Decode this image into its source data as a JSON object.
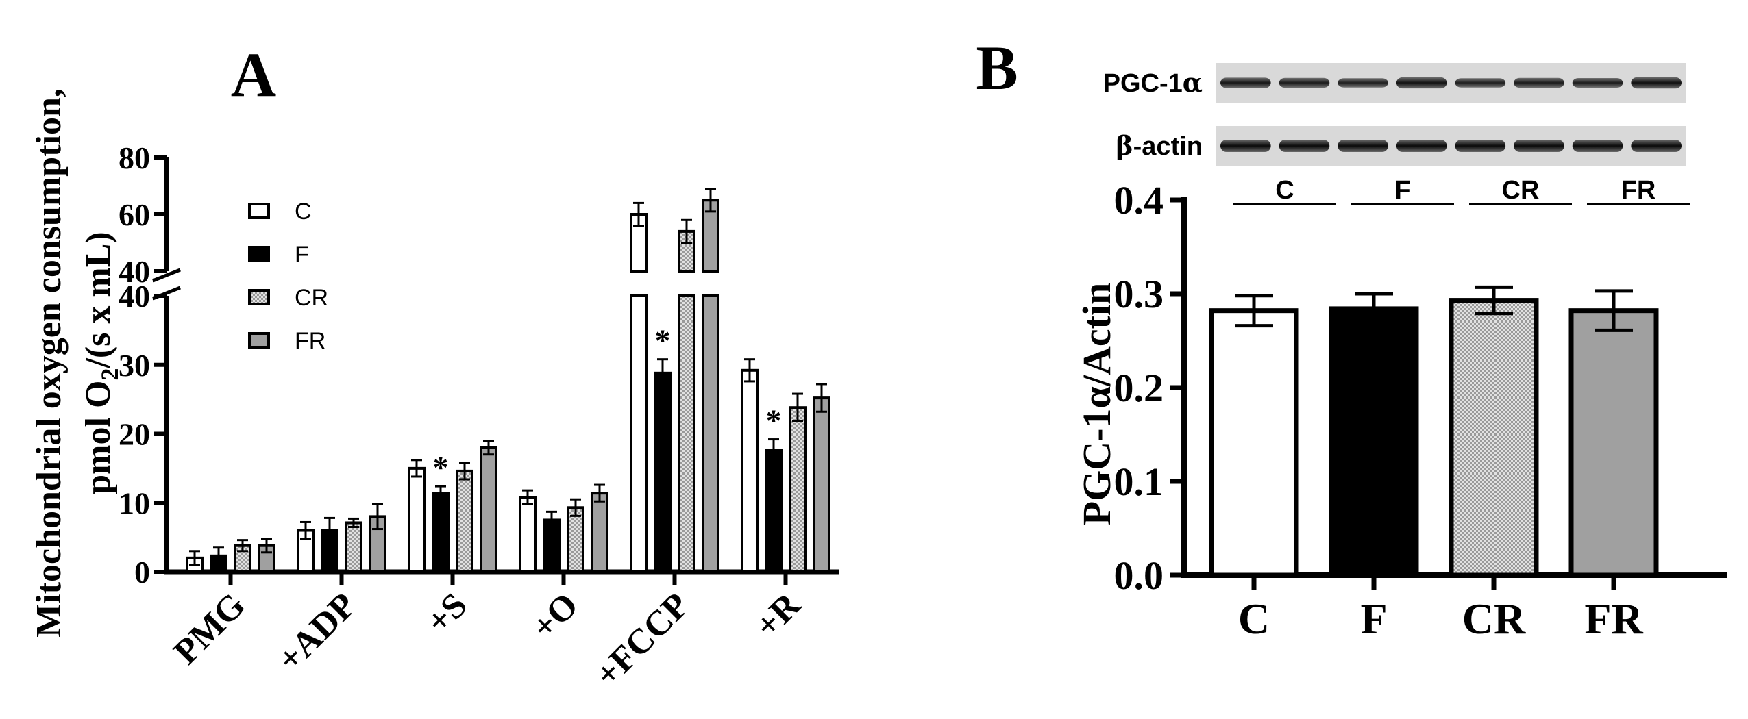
{
  "colors": {
    "C": "#ffffff",
    "F": "#000000",
    "CR": "#c8c8c8",
    "FR": "#a0a0a0",
    "axis": "#000000"
  },
  "chart_data": [
    {
      "panel": "A",
      "type": "bar",
      "ylabel_line1": "Mitochondrial oxygen consumption,",
      "ylabel_line2_pre": "pmol O",
      "ylabel_line2_sub": "2",
      "ylabel_line2_post": "/(s x mL)",
      "categories": [
        "PMG",
        "+ADP",
        "+S",
        "+O",
        "+FCCP",
        "+R"
      ],
      "axis_break": {
        "lower": [
          0,
          40
        ],
        "upper": [
          40,
          80
        ]
      },
      "yticks_lower": [
        "0",
        "10",
        "20",
        "30",
        "40"
      ],
      "yticks_upper": [
        "40",
        "60",
        "80"
      ],
      "legend_placement": "top-left",
      "series": [
        {
          "name": "C",
          "pattern": "white",
          "values": [
            2,
            6,
            15,
            10.8,
            60,
            29.2
          ],
          "errors": [
            1.0,
            1.2,
            1.2,
            1.0,
            4,
            1.6
          ]
        },
        {
          "name": "F",
          "pattern": "black",
          "values": [
            2.3,
            6,
            11.4,
            7.5,
            28.8,
            17.6
          ],
          "errors": [
            1.2,
            1.8,
            1.0,
            1.2,
            2.0,
            1.6
          ]
        },
        {
          "name": "CR",
          "pattern": "dotted",
          "values": [
            3.8,
            7.1,
            14.6,
            9.3,
            54,
            23.8
          ],
          "errors": [
            0.8,
            0.6,
            1.2,
            1.2,
            4,
            2.0
          ]
        },
        {
          "name": "FR",
          "pattern": "gray",
          "values": [
            3.8,
            8,
            18,
            11.4,
            65,
            25.2
          ],
          "errors": [
            1.0,
            1.8,
            1.0,
            1.2,
            4,
            2.0
          ]
        }
      ],
      "significance_marks": [
        {
          "category": "+S",
          "series": "F",
          "label": "*"
        },
        {
          "category": "+FCCP",
          "series": "F",
          "label": "*"
        },
        {
          "category": "+R",
          "series": "F",
          "label": "*"
        }
      ]
    },
    {
      "panel": "B",
      "type": "bar",
      "ylabel_pre": "PGC-1",
      "ylabel_greek": "α",
      "ylabel_post": "/Actin",
      "categories": [
        "C",
        "F",
        "CR",
        "FR"
      ],
      "ylim": [
        0,
        0.4
      ],
      "yticks": [
        "0.0",
        "0.1",
        "0.2",
        "0.3",
        "0.4"
      ],
      "values": [
        0.282,
        0.284,
        0.293,
        0.282
      ],
      "errors": [
        0.016,
        0.016,
        0.014,
        0.021
      ],
      "patterns": [
        "white",
        "black",
        "dotted",
        "gray"
      ],
      "blot": {
        "rows": [
          {
            "label_pre": "PGC-1",
            "label_greek": "α",
            "label_post": ""
          },
          {
            "label_pre": "",
            "label_greek": "β",
            "label_post": "-actin"
          }
        ],
        "lanes": 8,
        "group_labels": [
          "C",
          "F",
          "CR",
          "FR"
        ]
      }
    }
  ],
  "panel_labels": [
    "A",
    "B"
  ]
}
